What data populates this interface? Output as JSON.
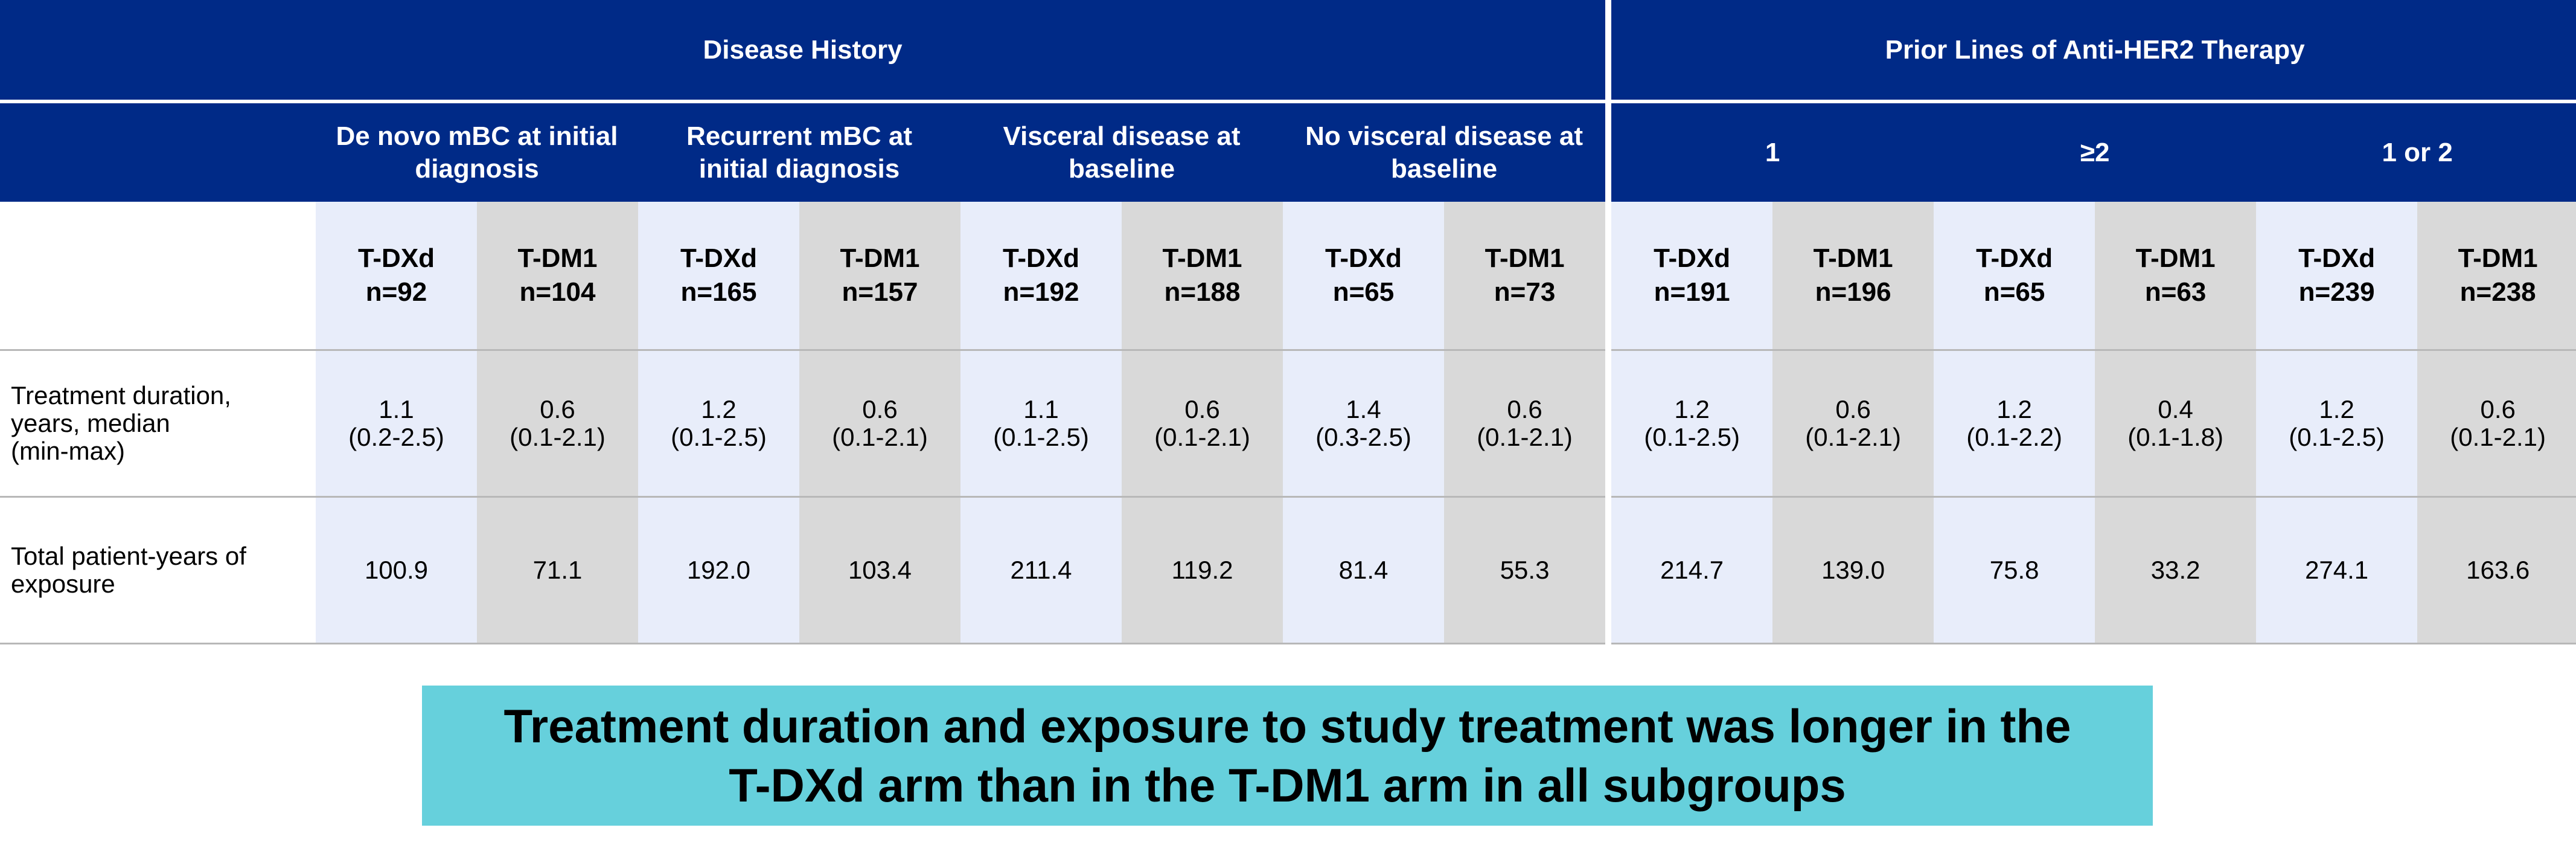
{
  "groups": [
    {
      "label": "Disease History"
    },
    {
      "label": "Prior Lines of Anti-HER2 Therapy"
    }
  ],
  "subgroups": [
    {
      "line1": "De novo mBC at initial",
      "line2": "diagnosis"
    },
    {
      "line1": "Recurrent mBC at",
      "line2": "initial diagnosis"
    },
    {
      "line1": "Visceral disease at",
      "line2": "baseline"
    },
    {
      "line1": "No visceral disease at",
      "line2": "baseline"
    },
    {
      "line1": "1",
      "line2": ""
    },
    {
      "line1": "≥2",
      "line2": ""
    },
    {
      "line1": "1 or 2",
      "line2": ""
    }
  ],
  "arms": [
    {
      "name": "T-DXd",
      "n": "n=92"
    },
    {
      "name": "T-DM1",
      "n": "n=104"
    },
    {
      "name": "T-DXd",
      "n": "n=165"
    },
    {
      "name": "T-DM1",
      "n": "n=157"
    },
    {
      "name": "T-DXd",
      "n": "n=192"
    },
    {
      "name": "T-DM1",
      "n": "n=188"
    },
    {
      "name": "T-DXd",
      "n": "n=65"
    },
    {
      "name": "T-DM1",
      "n": "n=73"
    },
    {
      "name": "T-DXd",
      "n": "n=191"
    },
    {
      "name": "T-DM1",
      "n": "n=196"
    },
    {
      "name": "T-DXd",
      "n": "n=65"
    },
    {
      "name": "T-DM1",
      "n": "n=63"
    },
    {
      "name": "T-DXd",
      "n": "n=239"
    },
    {
      "name": "T-DM1",
      "n": "n=238"
    }
  ],
  "rows": {
    "duration": {
      "label_lines": [
        "Treatment duration,",
        "years, median",
        "(min-max)"
      ],
      "values": [
        {
          "median": "1.1",
          "range": "(0.2-2.5)"
        },
        {
          "median": "0.6",
          "range": "(0.1-2.1)"
        },
        {
          "median": "1.2",
          "range": "(0.1-2.5)"
        },
        {
          "median": "0.6",
          "range": "(0.1-2.1)"
        },
        {
          "median": "1.1",
          "range": "(0.1-2.5)"
        },
        {
          "median": "0.6",
          "range": "(0.1-2.1)"
        },
        {
          "median": "1.4",
          "range": "(0.3-2.5)"
        },
        {
          "median": "0.6",
          "range": "(0.1-2.1)"
        },
        {
          "median": "1.2",
          "range": "(0.1-2.5)"
        },
        {
          "median": "0.6",
          "range": "(0.1-2.1)"
        },
        {
          "median": "1.2",
          "range": "(0.1-2.2)"
        },
        {
          "median": "0.4",
          "range": "(0.1-1.8)"
        },
        {
          "median": "1.2",
          "range": "(0.1-2.5)"
        },
        {
          "median": "0.6",
          "range": "(0.1-2.1)"
        }
      ]
    },
    "exposure": {
      "label_lines": [
        "Total patient-years of",
        "exposure"
      ],
      "values": [
        "100.9",
        "71.1",
        "192.0",
        "103.4",
        "211.4",
        "119.2",
        "81.4",
        "55.3",
        "214.7",
        "139.0",
        "75.8",
        "33.2",
        "274.1",
        "163.6"
      ]
    }
  },
  "callout": {
    "line1": "Treatment duration and exposure to study treatment was longer in the",
    "line2": "T-DXd arm than in the T-DM1 arm in all subgroups"
  },
  "colors": {
    "header_navy": "#002a87",
    "tdxd_column": "#e8edfa",
    "tdm1_column": "#d9d9d9",
    "callout_bg": "#66d0dc"
  }
}
